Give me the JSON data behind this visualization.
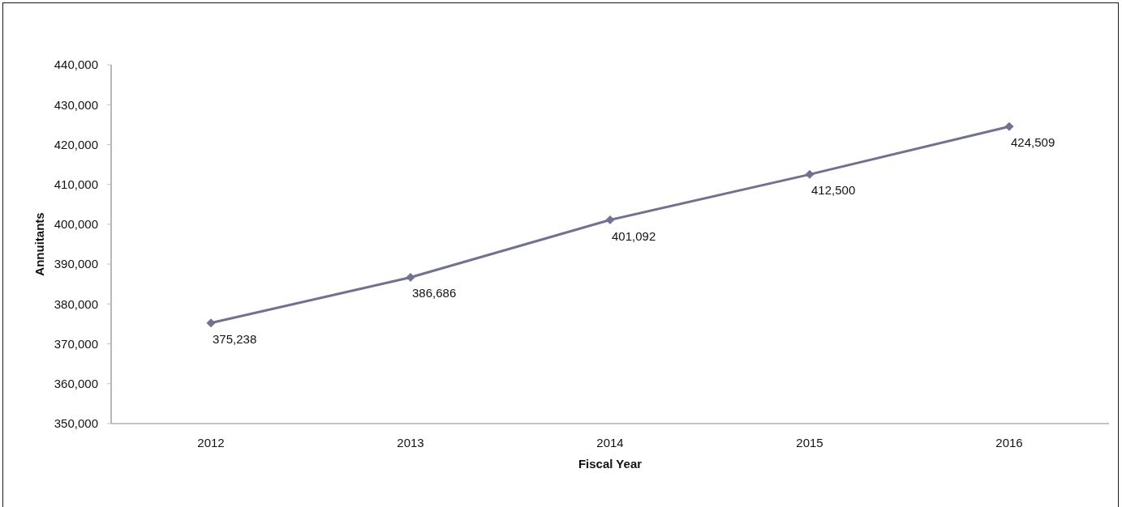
{
  "chart_data": {
    "type": "line",
    "xlabel": "Fiscal Year",
    "ylabel": "Annuitants",
    "categories": [
      "2012",
      "2013",
      "2014",
      "2015",
      "2016"
    ],
    "series": [
      {
        "color": "#717190",
        "values": [
          375238,
          386686,
          401092,
          412500,
          424509
        ],
        "value_labels": [
          "375,238",
          "386,686",
          "401,092",
          "412,500",
          "424,509"
        ]
      }
    ],
    "ylim": [
      350000,
      440000
    ],
    "yticks": [
      {
        "value": 350000,
        "label": "350,000"
      },
      {
        "value": 360000,
        "label": "360,000"
      },
      {
        "value": 370000,
        "label": "370,000"
      },
      {
        "value": 380000,
        "label": "380,000"
      },
      {
        "value": 390000,
        "label": "390,000"
      },
      {
        "value": 400000,
        "label": "400,000"
      },
      {
        "value": 410000,
        "label": "410,000"
      },
      {
        "value": 420000,
        "label": "420,000"
      },
      {
        "value": 430000,
        "label": "430,000"
      },
      {
        "value": 440000,
        "label": "440,000"
      }
    ],
    "marker": "diamond",
    "line_style": "solid",
    "grid": false
  }
}
